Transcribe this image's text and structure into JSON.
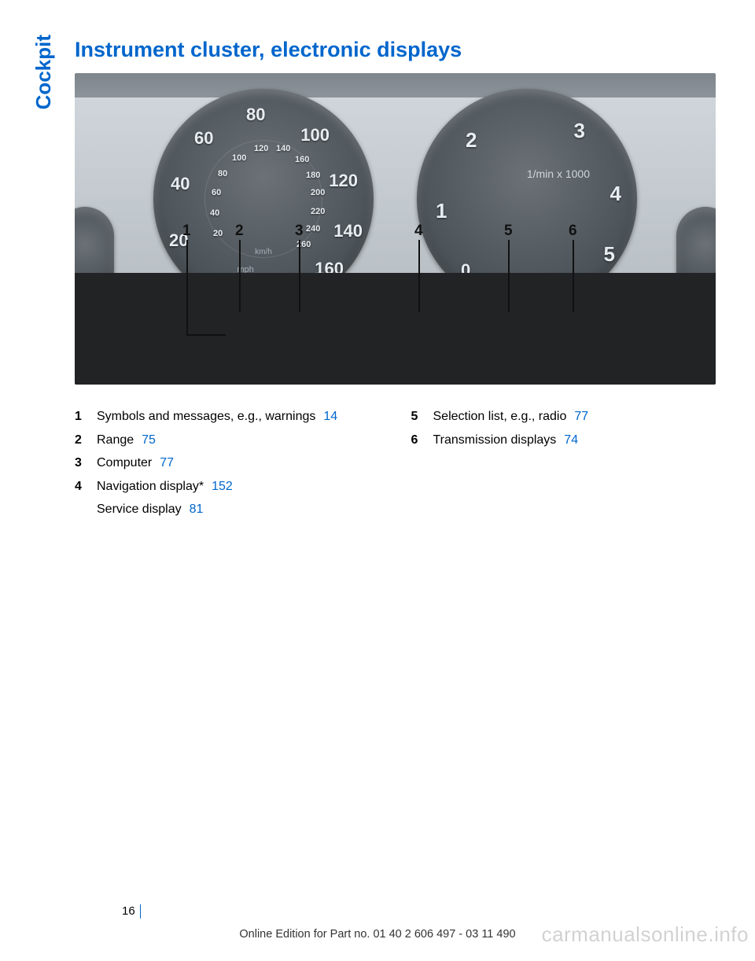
{
  "section": "Cockpit",
  "heading": "Instrument cluster, electronic displays",
  "page_number": "16",
  "footer": "Online Edition for Part no. 01 40 2 606 497 - 03 11 490",
  "watermark": "carmanualsonline.info",
  "speedo": {
    "outer": [
      "20",
      "40",
      "60",
      "80",
      "100",
      "120",
      "140",
      "160"
    ],
    "inner": [
      "20",
      "40",
      "60",
      "80",
      "100",
      "120",
      "140",
      "160",
      "180",
      "200",
      "220",
      "240",
      "260"
    ],
    "unit_outer": "mph",
    "unit_inner": "km/h"
  },
  "tacho": {
    "ticks": [
      "0",
      "1",
      "2",
      "3",
      "4",
      "5"
    ],
    "unit": "1/min x 1000"
  },
  "fuel_small": "1",
  "callouts": [
    "1",
    "2",
    "3",
    "4",
    "5",
    "6"
  ],
  "legend_left": [
    {
      "n": "1",
      "items": [
        {
          "t": "Symbols and messages, e.g., warnings",
          "p": "14"
        }
      ]
    },
    {
      "n": "2",
      "items": [
        {
          "t": "Range",
          "p": "75"
        }
      ]
    },
    {
      "n": "3",
      "items": [
        {
          "t": "Computer",
          "p": "77"
        }
      ]
    },
    {
      "n": "4",
      "items": [
        {
          "t": "Navigation display*",
          "p": "152"
        },
        {
          "t": "Service display",
          "p": "81"
        }
      ]
    }
  ],
  "legend_right": [
    {
      "n": "5",
      "items": [
        {
          "t": "Selection list, e.g., radio",
          "p": "77"
        }
      ]
    },
    {
      "n": "6",
      "items": [
        {
          "t": "Transmission displays",
          "p": "74"
        }
      ]
    }
  ]
}
